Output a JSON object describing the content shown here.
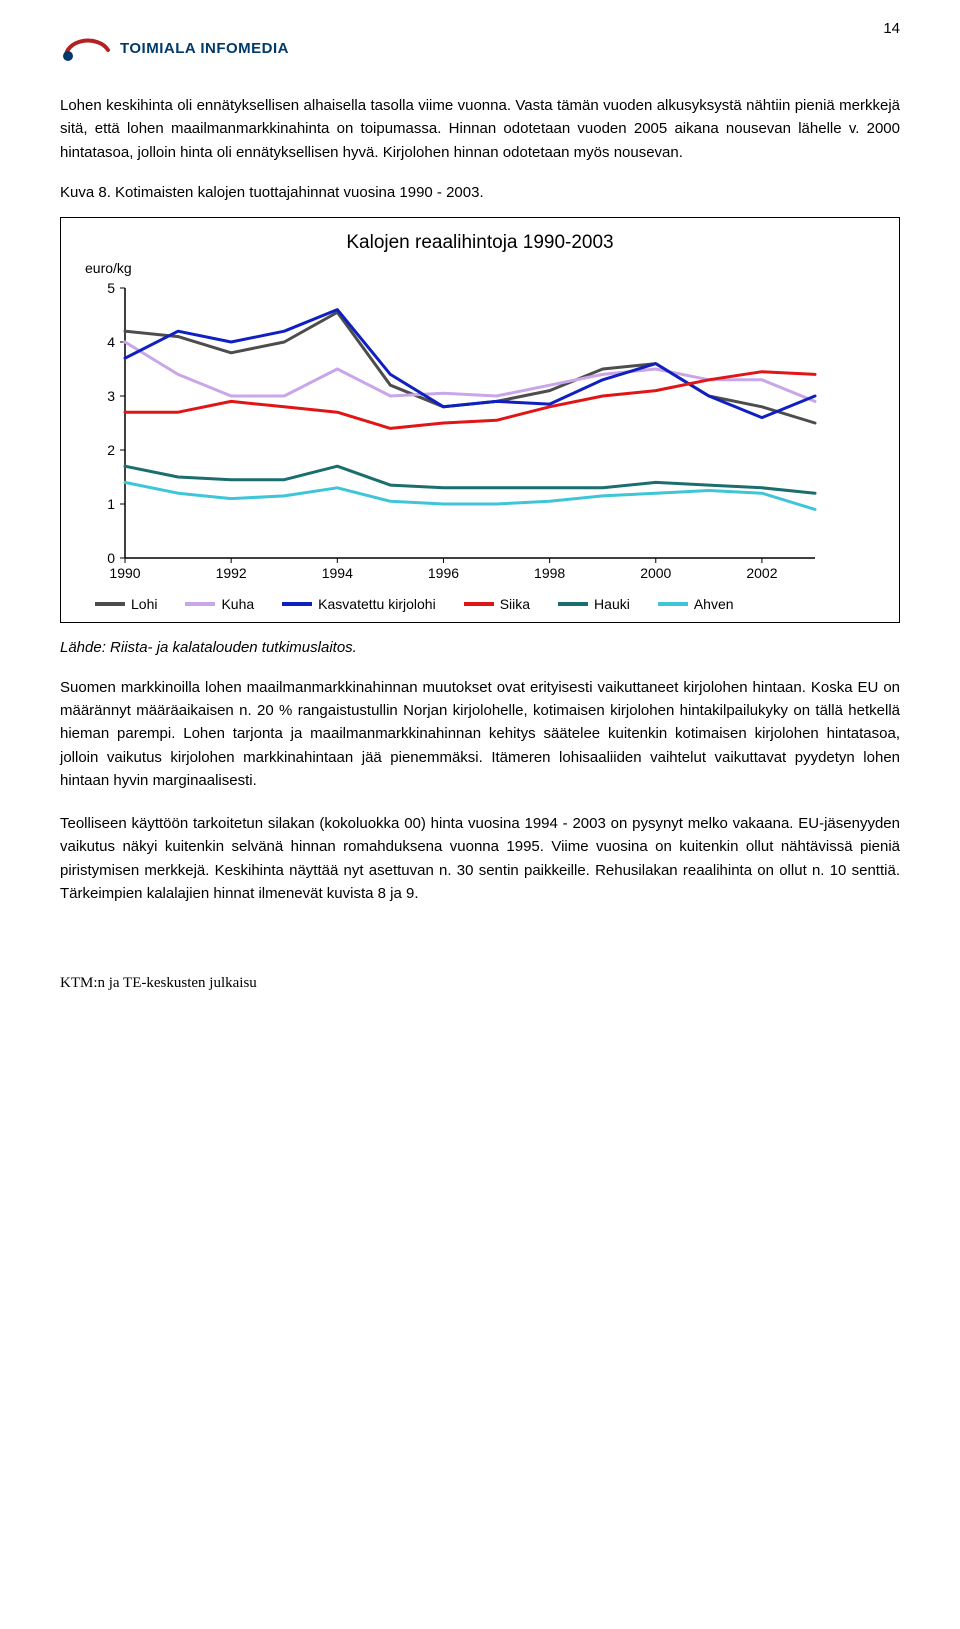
{
  "page_number": "14",
  "logo": {
    "brand": "TOIMIALA INFOMEDIA",
    "arc_color": "#b22222",
    "dot_color": "#003a6b",
    "text_color": "#003a6b"
  },
  "paragraphs": {
    "p1": "Lohen keskihinta oli ennätyksellisen alhaisella tasolla viime vuonna. Vasta tämän vuoden alkusyksystä nähtiin pieniä merkkejä sitä, että lohen maailmanmarkkinahinta on toipumassa. Hinnan odotetaan vuoden 2005 aikana nousevan lähelle v. 2000 hintatasoa, jolloin hinta oli ennätyksellisen hyvä. Kirjolohen hinnan odotetaan myös nousevan.",
    "caption": "Kuva 8. Kotimaisten kalojen tuottajahinnat vuosina 1990 - 2003.",
    "source": "Lähde: Riista- ja kalatalouden tutkimuslaitos.",
    "p2": "Suomen markkinoilla lohen maailmanmarkkinahinnan muutokset ovat erityisesti vaikuttaneet kirjolohen hintaan. Koska EU on määrännyt määräaikaisen n. 20 % rangaistustullin Norjan kirjolohelle, kotimaisen kirjolohen hintakilpailukyky on tällä hetkellä hieman parempi. Lohen tarjonta ja maailmanmarkkinahinnan kehitys säätelee kuitenkin kotimaisen kirjolohen hintatasoa, jolloin vaikutus kirjolohen markkinahintaan jää pienemmäksi. Itämeren lohisaaliiden vaihtelut vaikuttavat pyydetyn lohen hintaan hyvin marginaalisesti.",
    "p3": "Teolliseen käyttöön tarkoitetun silakan (kokoluokka 00) hinta vuosina 1994 - 2003 on pysynyt melko vakaana. EU-jäsenyyden vaikutus näkyi kuitenkin selvänä hinnan romahduksena vuonna 1995. Viime vuosina on kuitenkin ollut nähtävissä pieniä piristymisen merkkejä. Keskihinta näyttää nyt asettuvan n. 30 sentin paikkeille. Rehusilakan reaalihinta on ollut n. 10 senttiä. Tärkeimpien kalalajien hinnat ilmenevät kuvista 8 ja 9."
  },
  "footer": "KTM:n ja TE-keskusten julkaisu",
  "chart": {
    "type": "line",
    "title": "Kalojen reaalihintoja 1990-2003",
    "y_axis_label": "euro/kg",
    "background_color": "#ffffff",
    "axis_color": "#000000",
    "grid": false,
    "line_width": 3,
    "title_fontsize": 19,
    "tick_fontsize": 14,
    "xlim": [
      1990,
      2003
    ],
    "ylim": [
      0,
      5
    ],
    "x_ticks": [
      1990,
      1992,
      1994,
      1996,
      1998,
      2000,
      2002
    ],
    "y_ticks": [
      0,
      1,
      2,
      3,
      4,
      5
    ],
    "series": [
      {
        "name": "Lohi",
        "color": "#4d4d4d",
        "values": [
          4.2,
          4.1,
          3.8,
          4.0,
          4.55,
          3.2,
          2.8,
          2.9,
          3.1,
          3.5,
          3.6,
          3.0,
          2.8,
          2.5
        ]
      },
      {
        "name": "Kuha",
        "color": "#c9a6e8",
        "values": [
          4.0,
          3.4,
          3.0,
          3.0,
          3.5,
          3.0,
          3.05,
          3.0,
          3.2,
          3.4,
          3.5,
          3.3,
          3.3,
          2.9
        ]
      },
      {
        "name": "Kasvatettu kirjolohi",
        "color": "#1020c0",
        "values": [
          3.7,
          4.2,
          4.0,
          4.2,
          4.6,
          3.4,
          2.8,
          2.9,
          2.85,
          3.3,
          3.6,
          3.0,
          2.6,
          3.0
        ]
      },
      {
        "name": "Siika",
        "color": "#e01515",
        "values": [
          2.7,
          2.7,
          2.9,
          2.8,
          2.7,
          2.4,
          2.5,
          2.55,
          2.8,
          3.0,
          3.1,
          3.3,
          3.45,
          3.4
        ]
      },
      {
        "name": "Hauki",
        "color": "#1a6e6e",
        "values": [
          1.7,
          1.5,
          1.45,
          1.45,
          1.7,
          1.35,
          1.3,
          1.3,
          1.3,
          1.3,
          1.4,
          1.35,
          1.3,
          1.2
        ]
      },
      {
        "name": "Ahven",
        "color": "#3fc5d8",
        "values": [
          1.4,
          1.2,
          1.1,
          1.15,
          1.3,
          1.05,
          1.0,
          1.0,
          1.05,
          1.15,
          1.2,
          1.25,
          1.2,
          0.9
        ]
      }
    ]
  }
}
